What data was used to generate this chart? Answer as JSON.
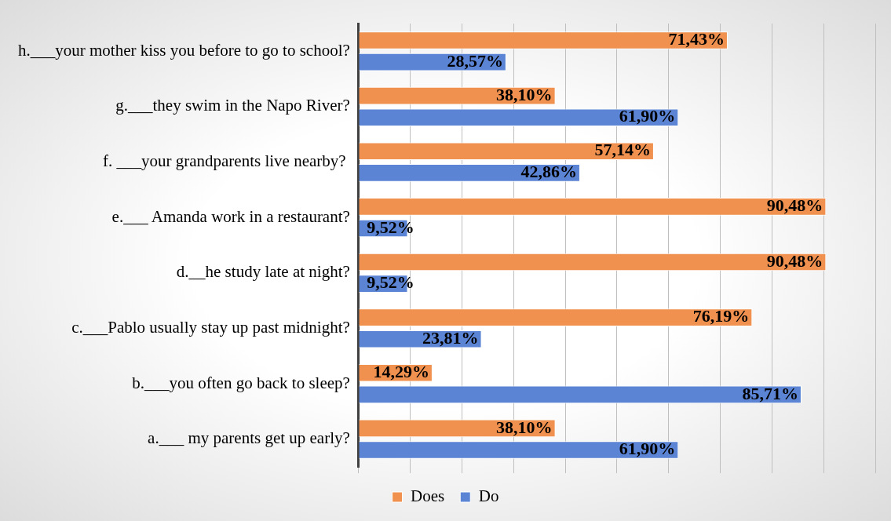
{
  "chart_data": {
    "type": "bar",
    "orientation": "horizontal",
    "categories": [
      "h.___your mother kiss you before to go to school?",
      "g.___they swim in the Napo River?",
      "f. ___your grandparents live nearby? ",
      "e.___ Amanda work in a restaurant?",
      "d.__he study late at night?",
      "c.___Pablo usually stay up past midnight?",
      "b.___you often go back to sleep?",
      "a.___ my parents get up early?"
    ],
    "series": [
      {
        "name": "Does",
        "color": "#f0914f",
        "values": [
          71.43,
          38.1,
          57.14,
          90.48,
          90.48,
          76.19,
          14.29,
          38.1
        ],
        "value_labels": [
          "71,43%",
          "38,10%",
          "57,14%",
          "90,48%",
          "90,48%",
          "76,19%",
          "14,29%",
          "38,10%"
        ]
      },
      {
        "name": "Do",
        "color": "#5b84d4",
        "values": [
          28.57,
          61.9,
          42.86,
          9.52,
          9.52,
          23.81,
          85.71,
          61.9
        ],
        "value_labels": [
          "28,57%",
          "61,90%",
          "42,86%",
          "9,52%",
          "9,52%",
          "23,81%",
          "85,71%",
          "61,90%"
        ]
      }
    ],
    "xlim": [
      0,
      100
    ],
    "xticks": [
      {
        "value": 0,
        "label": null
      },
      {
        "value": 10,
        "label": null
      },
      {
        "value": 20,
        "label": null
      },
      {
        "value": 30,
        "label": null
      },
      {
        "value": 40,
        "label": null
      },
      {
        "value": 50,
        "label": null
      },
      {
        "value": 60,
        "label": null
      },
      {
        "value": 70,
        "label": null
      },
      {
        "value": 80,
        "label": null
      },
      {
        "value": 90,
        "label": null
      },
      {
        "value": 100,
        "label": null
      }
    ],
    "tick_labels": "y",
    "grid": "x",
    "legend": "bottom"
  }
}
